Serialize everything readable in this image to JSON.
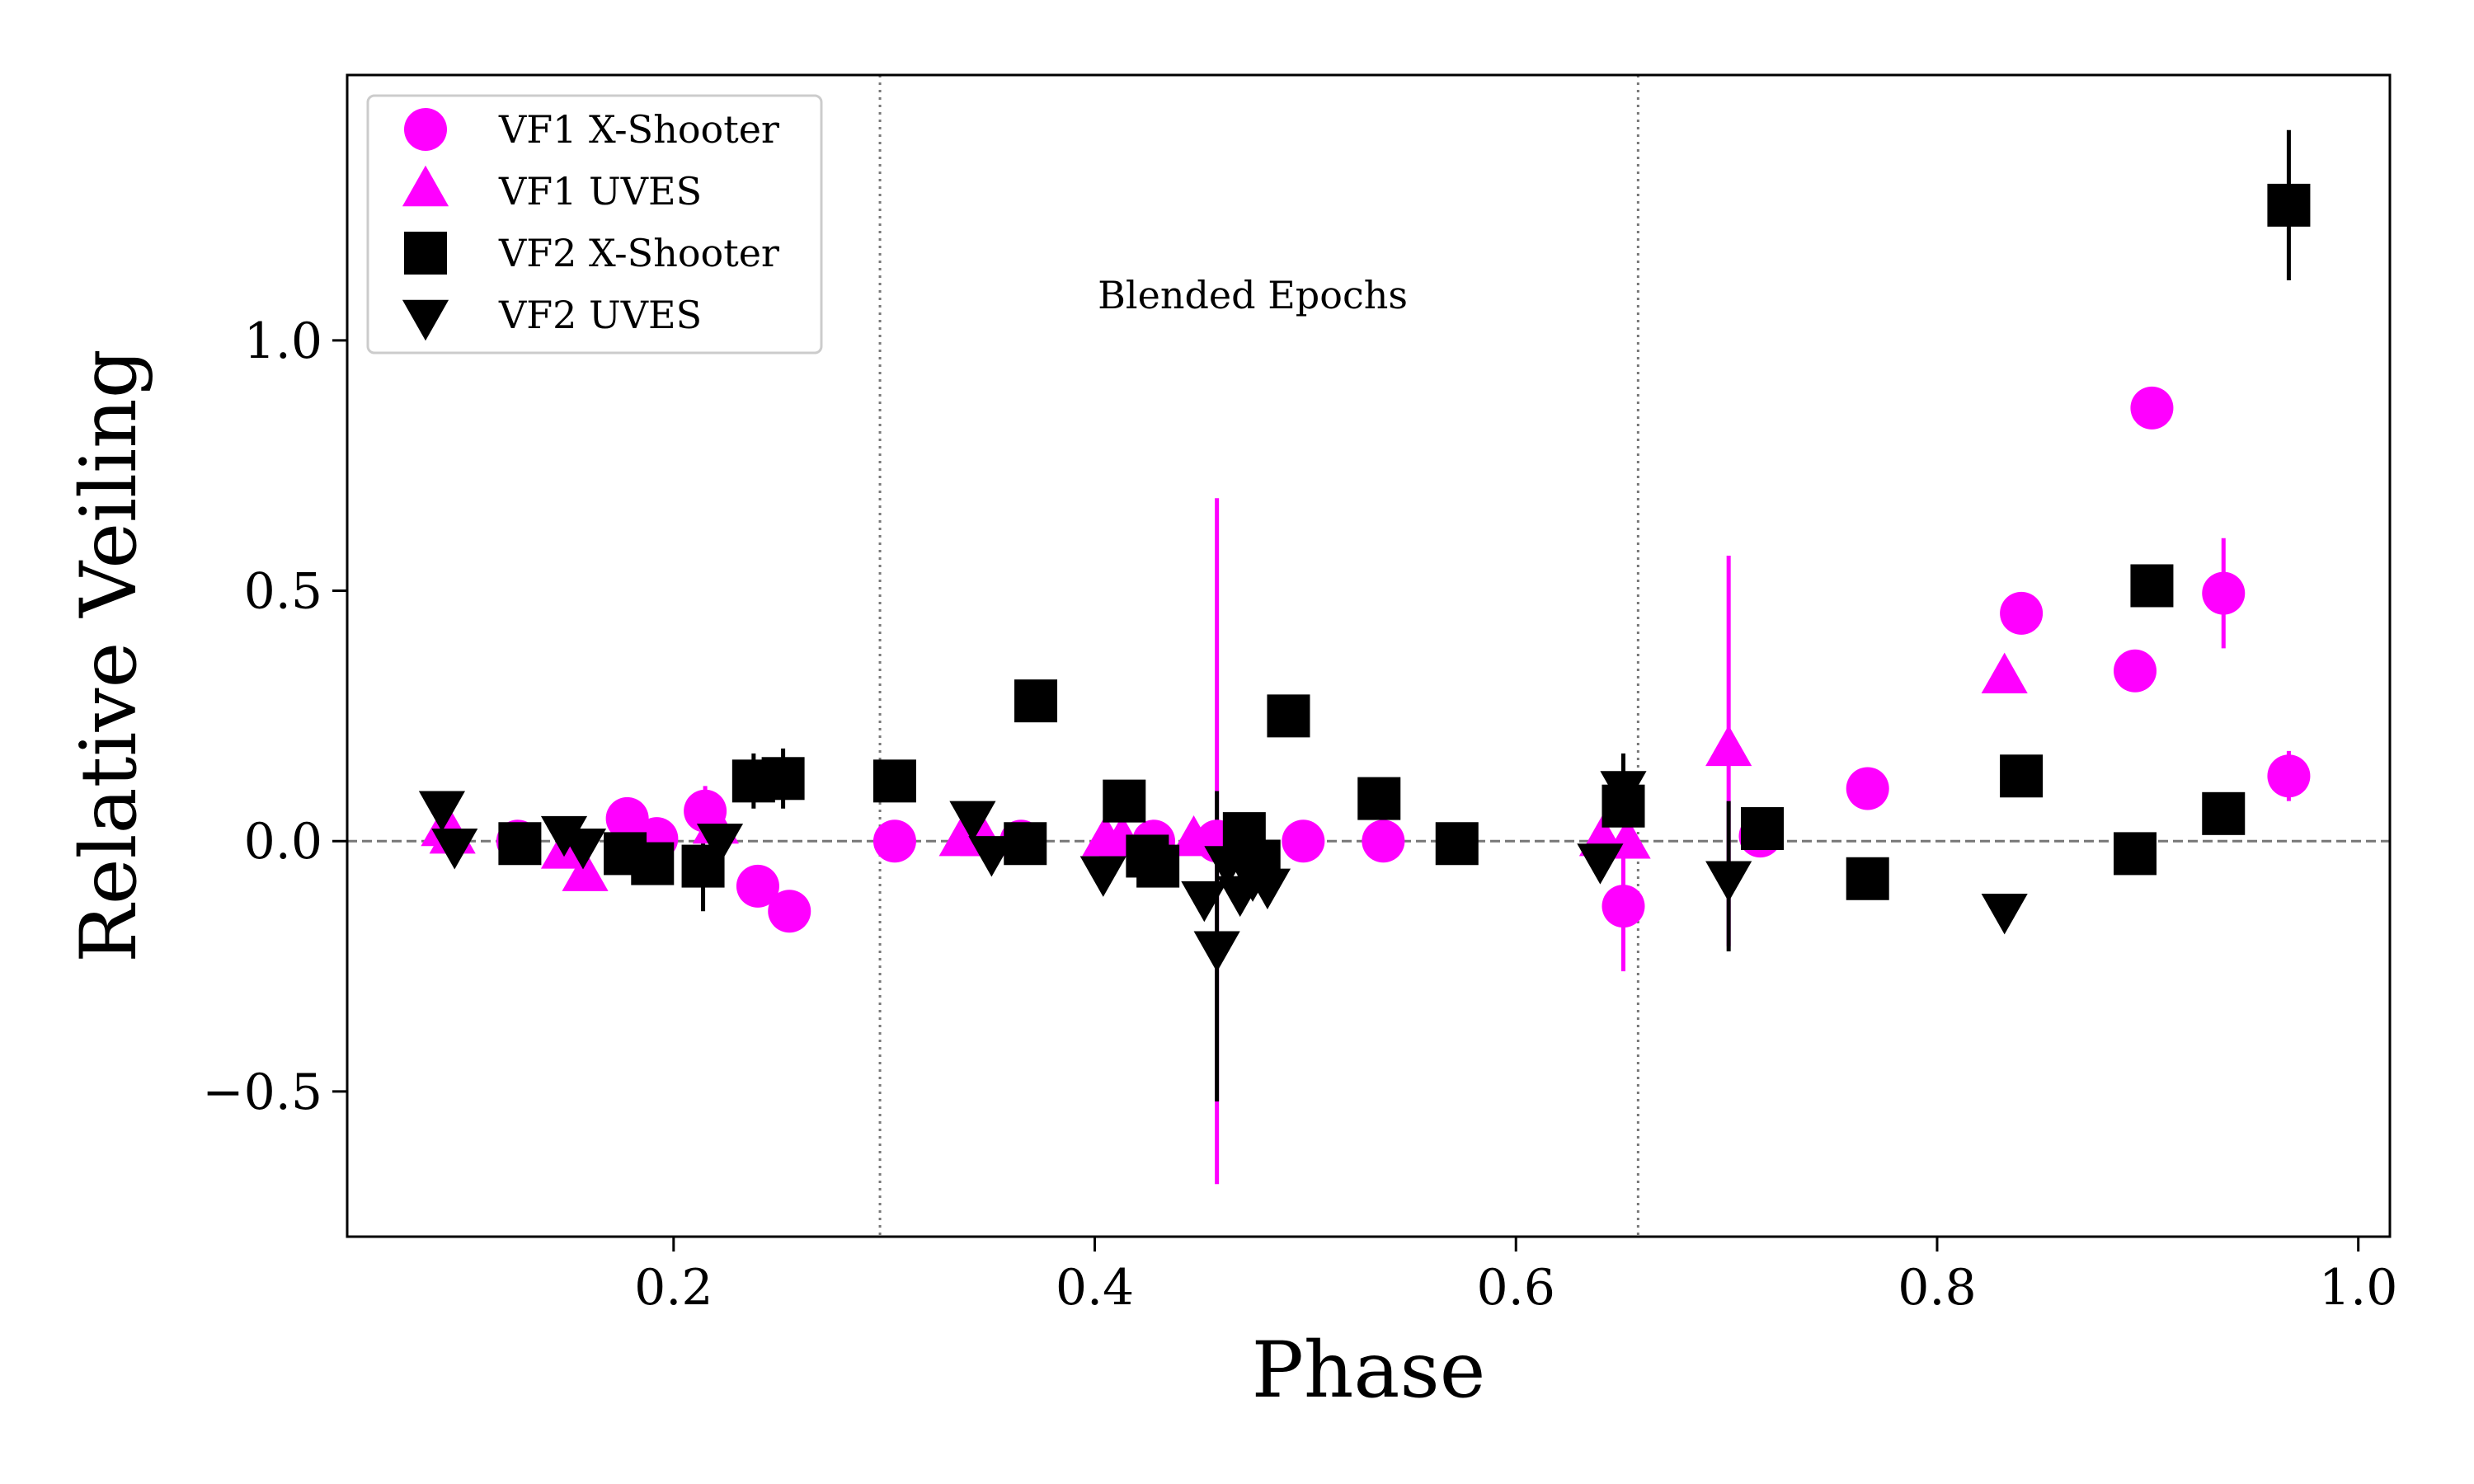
{
  "chart_data": {
    "type": "scatter",
    "xlabel": "Phase",
    "ylabel": "Relative Veiling",
    "xlim": [
      0.045,
      1.015
    ],
    "ylim": [
      -0.79,
      1.53
    ],
    "xticks": [
      0.2,
      0.4,
      0.6,
      0.8,
      1.0
    ],
    "yticks": [
      -0.5,
      0.0,
      0.5,
      1.0
    ],
    "xtick_labels": [
      "0.2",
      "0.4",
      "0.6",
      "0.8",
      "1.0"
    ],
    "ytick_labels": [
      "−0.5",
      "0.0",
      "0.5",
      "1.0"
    ],
    "vlines": [
      0.298,
      0.658
    ],
    "hline": 0.0,
    "annotation": {
      "text": "Blended Epochs",
      "x": 0.475,
      "y": 1.09
    },
    "legend_position": "upper left",
    "series": [
      {
        "name": "VF1 X-Shooter",
        "marker": "circle",
        "color": "#ff00ff",
        "points": [
          {
            "x": 0.126,
            "y": 0.0
          },
          {
            "x": 0.178,
            "y": 0.045
          },
          {
            "x": 0.192,
            "y": 0.005
          },
          {
            "x": 0.215,
            "y": 0.06,
            "err": 0.05
          },
          {
            "x": 0.24,
            "y": -0.09
          },
          {
            "x": 0.255,
            "y": -0.14
          },
          {
            "x": 0.305,
            "y": 0.0
          },
          {
            "x": 0.365,
            "y": 0.0
          },
          {
            "x": 0.428,
            "y": 0.0
          },
          {
            "x": 0.458,
            "y": 0.0,
            "err": 0.685
          },
          {
            "x": 0.499,
            "y": 0.0
          },
          {
            "x": 0.537,
            "y": 0.0
          },
          {
            "x": 0.651,
            "y": -0.13,
            "err": 0.13
          },
          {
            "x": 0.716,
            "y": 0.01
          },
          {
            "x": 0.767,
            "y": 0.105
          },
          {
            "x": 0.84,
            "y": 0.455
          },
          {
            "x": 0.894,
            "y": 0.34
          },
          {
            "x": 0.902,
            "y": 0.865
          },
          {
            "x": 0.936,
            "y": 0.495,
            "err": 0.11
          },
          {
            "x": 0.967,
            "y": 0.13,
            "err": 0.05
          }
        ]
      },
      {
        "name": "VF1 UVES",
        "marker": "triangle-up",
        "color": "#ff00ff",
        "points": [
          {
            "x": 0.091,
            "y": 0.02
          },
          {
            "x": 0.095,
            "y": 0.005
          },
          {
            "x": 0.148,
            "y": -0.025
          },
          {
            "x": 0.158,
            "y": -0.07
          },
          {
            "x": 0.22,
            "y": 0.025
          },
          {
            "x": 0.337,
            "y": 0.0
          },
          {
            "x": 0.347,
            "y": 0.0
          },
          {
            "x": 0.405,
            "y": 0.0
          },
          {
            "x": 0.413,
            "y": 0.0
          },
          {
            "x": 0.447,
            "y": 0.0
          },
          {
            "x": 0.641,
            "y": 0.0
          },
          {
            "x": 0.653,
            "y": -0.005
          },
          {
            "x": 0.701,
            "y": 0.18,
            "err": 0.39
          },
          {
            "x": 0.832,
            "y": 0.325
          }
        ]
      },
      {
        "name": "VF2 X-Shooter",
        "marker": "square",
        "color": "#000000",
        "points": [
          {
            "x": 0.127,
            "y": -0.005
          },
          {
            "x": 0.177,
            "y": -0.025
          },
          {
            "x": 0.19,
            "y": -0.045
          },
          {
            "x": 0.214,
            "y": -0.05,
            "err": 0.09
          },
          {
            "x": 0.238,
            "y": 0.12,
            "err": 0.055
          },
          {
            "x": 0.252,
            "y": 0.125,
            "err": 0.06
          },
          {
            "x": 0.305,
            "y": 0.12
          },
          {
            "x": 0.367,
            "y": -0.005
          },
          {
            "x": 0.372,
            "y": 0.28
          },
          {
            "x": 0.414,
            "y": 0.08
          },
          {
            "x": 0.425,
            "y": -0.03
          },
          {
            "x": 0.43,
            "y": -0.05
          },
          {
            "x": 0.471,
            "y": 0.015
          },
          {
            "x": 0.478,
            "y": -0.04
          },
          {
            "x": 0.492,
            "y": 0.25
          },
          {
            "x": 0.535,
            "y": 0.085
          },
          {
            "x": 0.572,
            "y": -0.005
          },
          {
            "x": 0.651,
            "y": 0.07
          },
          {
            "x": 0.717,
            "y": 0.025
          },
          {
            "x": 0.767,
            "y": -0.075
          },
          {
            "x": 0.84,
            "y": 0.13
          },
          {
            "x": 0.894,
            "y": -0.025
          },
          {
            "x": 0.902,
            "y": 0.51
          },
          {
            "x": 0.936,
            "y": 0.055
          },
          {
            "x": 0.967,
            "y": 1.27,
            "err": 0.15
          }
        ]
      },
      {
        "name": "VF2 UVES",
        "marker": "triangle-down",
        "color": "#000000",
        "points": [
          {
            "x": 0.09,
            "y": 0.07
          },
          {
            "x": 0.096,
            "y": -0.005
          },
          {
            "x": 0.148,
            "y": 0.02
          },
          {
            "x": 0.157,
            "y": -0.005
          },
          {
            "x": 0.222,
            "y": 0.005
          },
          {
            "x": 0.342,
            "y": 0.05
          },
          {
            "x": 0.351,
            "y": -0.02
          },
          {
            "x": 0.404,
            "y": -0.06
          },
          {
            "x": 0.452,
            "y": -0.11
          },
          {
            "x": 0.458,
            "y": -0.21,
            "err": 0.31
          },
          {
            "x": 0.463,
            "y": -0.04
          },
          {
            "x": 0.469,
            "y": -0.1
          },
          {
            "x": 0.475,
            "y": -0.07
          },
          {
            "x": 0.482,
            "y": -0.085
          },
          {
            "x": 0.64,
            "y": -0.035
          },
          {
            "x": 0.651,
            "y": 0.11,
            "err": 0.065
          },
          {
            "x": 0.701,
            "y": -0.07,
            "err": 0.15
          },
          {
            "x": 0.832,
            "y": -0.135
          }
        ]
      }
    ]
  }
}
